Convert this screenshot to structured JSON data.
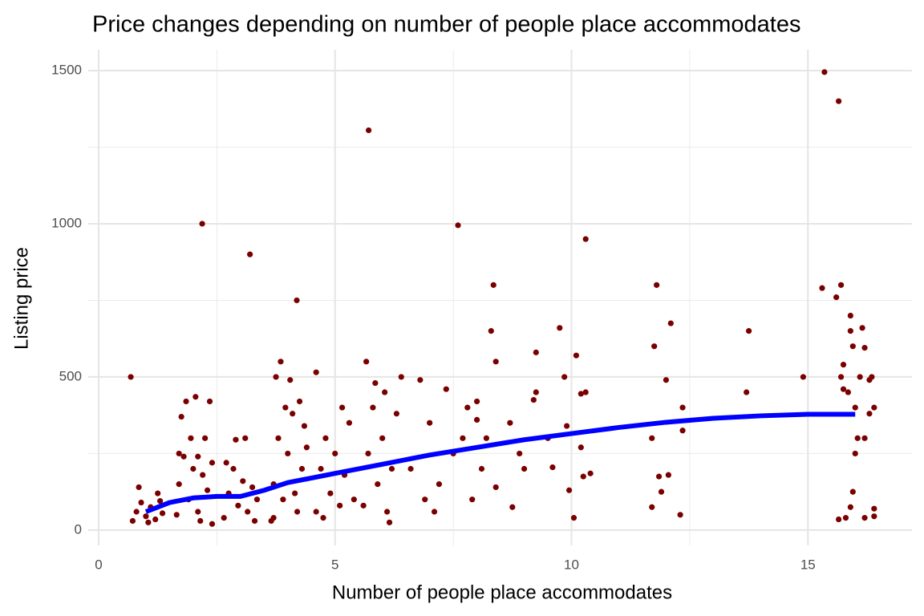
{
  "chart_data": {
    "type": "scatter",
    "title": "Price changes depending on number of people place accommodates",
    "x_label": "Number of people place accommodates",
    "y_label": "Listing price",
    "xlim": [
      -0.22,
      17.2
    ],
    "ylim": [
      -50,
      1568
    ],
    "xticks": [
      0,
      5,
      10,
      15
    ],
    "yticks": [
      0,
      500,
      1000,
      1500
    ],
    "xminor_ticks": [
      2.5,
      7.5,
      12.5
    ],
    "yminor_ticks": [
      250,
      750,
      1250
    ],
    "grid": true,
    "points": {
      "color": "#7a0000",
      "x": [
        0.72,
        0.8,
        0.9,
        1.0,
        1.1,
        1.2,
        1.3,
        0.85,
        1.35,
        0.68,
        1.05,
        1.25,
        1.65,
        1.7,
        1.8,
        1.9,
        2.0,
        2.1,
        2.2,
        2.3,
        2.4,
        1.75,
        1.85,
        2.05,
        2.25,
        2.35,
        2.19,
        2.15,
        1.95,
        2.4,
        1.7,
        2.1,
        2.65,
        2.75,
        2.85,
        2.95,
        3.05,
        3.15,
        3.25,
        3.35,
        2.9,
        3.2,
        3.1,
        2.7,
        3.3,
        3.65,
        3.7,
        3.8,
        3.9,
        4.0,
        4.1,
        4.2,
        4.3,
        4.35,
        3.75,
        3.85,
        4.05,
        4.19,
        4.25,
        3.95,
        4.15,
        4.4,
        3.7,
        4.6,
        4.7,
        4.8,
        4.9,
        5.0,
        5.1,
        5.2,
        5.3,
        5.4,
        4.6,
        5.15,
        4.75,
        5.6,
        5.7,
        5.8,
        5.9,
        6.0,
        6.1,
        6.2,
        6.3,
        6.4,
        5.66,
        5.71,
        5.85,
        6.15,
        6.05,
        6.6,
        6.8,
        6.9,
        7.0,
        7.2,
        7.35,
        7.5,
        7.6,
        7.7,
        7.8,
        7.1,
        7.9,
        8.0,
        8.1,
        8.2,
        8.3,
        8.35,
        8.4,
        8.4,
        8.0,
        8.7,
        8.75,
        8.9,
        9.0,
        9.2,
        9.25,
        9.25,
        9.5,
        9.6,
        9.75,
        9.85,
        9.9,
        9.95,
        10.05,
        10.1,
        10.2,
        10.2,
        10.25,
        10.3,
        10.3,
        10.4,
        11.7,
        11.75,
        11.8,
        11.85,
        11.9,
        12.0,
        12.05,
        12.1,
        12.3,
        12.35,
        12.35,
        11.7,
        13.7,
        13.75,
        14.9,
        15.35,
        15.65,
        15.3,
        15.6,
        15.7,
        15.75,
        15.7,
        15.85,
        15.9,
        15.95,
        15.9,
        16.0,
        16.05,
        16.1,
        16.15,
        16.2,
        16.3,
        16.35,
        16.4,
        16.3,
        16.2,
        16.4,
        15.8,
        15.9,
        15.95,
        16.0,
        15.65,
        16.2,
        16.4,
        15.75
      ],
      "y": [
        30,
        60,
        90,
        45,
        75,
        35,
        95,
        140,
        55,
        500,
        25,
        120,
        50,
        150,
        240,
        100,
        200,
        60,
        180,
        130,
        220,
        370,
        420,
        435,
        300,
        420,
        1000,
        30,
        300,
        20,
        250,
        240,
        40,
        120,
        200,
        80,
        160,
        60,
        140,
        100,
        295,
        900,
        300,
        220,
        30,
        30,
        150,
        300,
        100,
        250,
        380,
        60,
        200,
        340,
        500,
        550,
        490,
        750,
        420,
        400,
        120,
        270,
        40,
        60,
        200,
        300,
        120,
        250,
        80,
        180,
        350,
        100,
        515,
        400,
        40,
        80,
        250,
        400,
        150,
        300,
        60,
        200,
        380,
        500,
        550,
        1305,
        480,
        25,
        450,
        200,
        490,
        100,
        350,
        150,
        460,
        250,
        995,
        300,
        400,
        60,
        100,
        420,
        200,
        300,
        650,
        800,
        550,
        140,
        360,
        350,
        75,
        250,
        200,
        425,
        450,
        580,
        300,
        205,
        660,
        500,
        340,
        130,
        40,
        570,
        270,
        445,
        175,
        950,
        450,
        185,
        75,
        600,
        800,
        175,
        125,
        490,
        180,
        675,
        50,
        400,
        325,
        300,
        450,
        650,
        500,
        1495,
        1400,
        790,
        760,
        800,
        540,
        500,
        450,
        650,
        600,
        700,
        400,
        300,
        500,
        660,
        595,
        490,
        500,
        400,
        380,
        40,
        70,
        40,
        75,
        125,
        250,
        35,
        300,
        45,
        460
      ]
    },
    "smooth": {
      "color": "#0000ff",
      "x": [
        1,
        1.5,
        2,
        2.5,
        3,
        3.5,
        4,
        5,
        6,
        7,
        8,
        9,
        10,
        11,
        12,
        13,
        14,
        15,
        16
      ],
      "y": [
        60,
        90,
        105,
        110,
        110,
        130,
        155,
        185,
        215,
        245,
        270,
        295,
        315,
        335,
        352,
        365,
        373,
        378,
        378
      ]
    }
  }
}
